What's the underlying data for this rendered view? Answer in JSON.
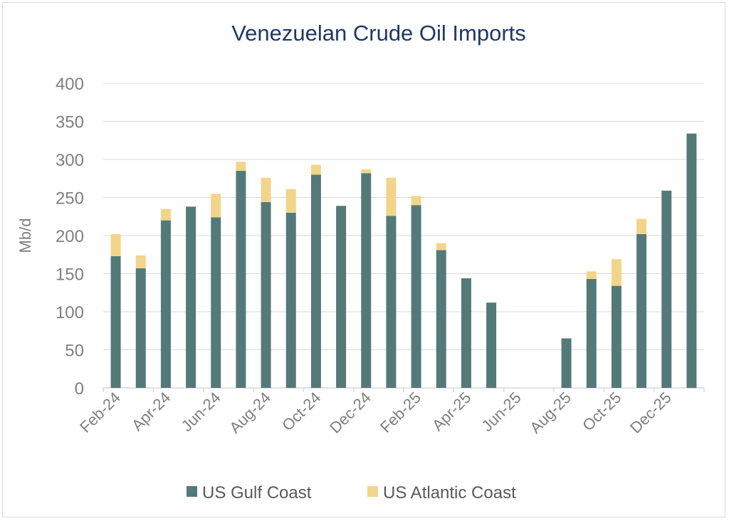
{
  "chart_data": {
    "type": "bar",
    "stacked": true,
    "title": "Venezuelan Crude Oil Imports",
    "ylabel": "Mb/d",
    "xlabel": "",
    "ylim": [
      0,
      400
    ],
    "yticks": [
      "0",
      "50",
      "100",
      "150",
      "200",
      "250",
      "300",
      "350",
      "400"
    ],
    "categories": [
      "Feb-24",
      "Mar-24",
      "Apr-24",
      "May-24",
      "Jun-24",
      "Jul-24",
      "Aug-24",
      "Sep-24",
      "Oct-24",
      "Nov-24",
      "Dec-24",
      "Jan-25",
      "Feb-25",
      "Mar-25",
      "Apr-25",
      "May-25",
      "Jun-25",
      "Jul-25",
      "Aug-25",
      "Sep-25",
      "Oct-25",
      "Nov-25",
      "Dec-25",
      "Jan-26"
    ],
    "xtick_labels": [
      "Feb-24",
      "Apr-24",
      "Jun-24",
      "Aug-24",
      "Oct-24",
      "Dec-24",
      "Feb-25",
      "Apr-25",
      "Jun-25",
      "Aug-25",
      "Oct-25",
      "Dec-25"
    ],
    "series": [
      {
        "name": "US Gulf Coast",
        "color": "#537a78",
        "values": [
          173,
          157,
          220,
          238,
          224,
          285,
          244,
          230,
          280,
          239,
          282,
          226,
          240,
          181,
          144,
          112,
          0,
          0,
          65,
          143,
          134,
          202,
          259,
          334
        ]
      },
      {
        "name": "US Atlantic Coast",
        "color": "#f2d58a",
        "values": [
          29,
          17,
          15,
          0,
          31,
          12,
          32,
          31,
          13,
          0,
          5,
          50,
          12,
          9,
          0,
          0,
          0,
          0,
          0,
          10,
          35,
          20,
          0,
          0
        ]
      }
    ],
    "legend_position": "bottom",
    "grid": true
  }
}
